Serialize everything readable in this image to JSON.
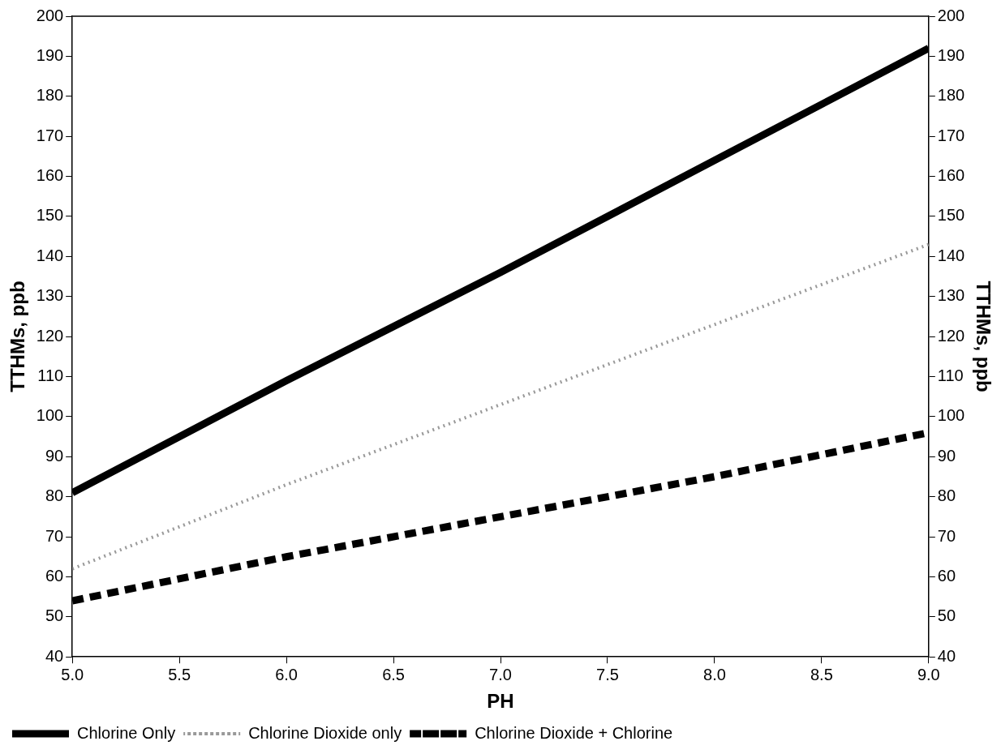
{
  "chart_data": {
    "type": "line",
    "xlabel": "PH",
    "ylabel": "TTHMs, ppb",
    "y2label": "TTHMs, ppb",
    "x": [
      5,
      6,
      7,
      8,
      9
    ],
    "series": [
      {
        "name": "Chlorine Only",
        "color": "#000000",
        "line_style": "solid",
        "values": [
          81,
          109,
          136,
          164,
          192
        ]
      },
      {
        "name": "Chlorine Dioxide only",
        "color": "#999999",
        "line_style": "dotted",
        "values": [
          62,
          83,
          103,
          123,
          143
        ]
      },
      {
        "name": "Chlorine Dioxide + Chlorine",
        "color": "#000000",
        "line_style": "dashed",
        "values": [
          54,
          65,
          75,
          85,
          96
        ]
      }
    ],
    "xlim": [
      5,
      9
    ],
    "xticks": [
      {
        "value": 5,
        "label": "5.0"
      },
      {
        "value": 5.5,
        "label": "5.5"
      },
      {
        "value": 6,
        "label": "6.0"
      },
      {
        "value": 6.5,
        "label": "6.5"
      },
      {
        "value": 7,
        "label": "7.0"
      },
      {
        "value": 7.5,
        "label": "7.5"
      },
      {
        "value": 8,
        "label": "8.0"
      },
      {
        "value": 8.5,
        "label": "8.5"
      },
      {
        "value": 9,
        "label": "9.0"
      }
    ],
    "ylim": [
      40,
      200
    ],
    "yticks": [
      40,
      50,
      60,
      70,
      80,
      90,
      100,
      110,
      120,
      130,
      140,
      150,
      160,
      170,
      180,
      190,
      200
    ],
    "y2lim": [
      40,
      200
    ],
    "y2ticks": [
      40,
      50,
      60,
      70,
      80,
      90,
      100,
      110,
      120,
      130,
      140,
      150,
      160,
      170,
      180,
      190,
      200
    ],
    "grid": false,
    "legend": "bottom left",
    "marker": "none"
  }
}
